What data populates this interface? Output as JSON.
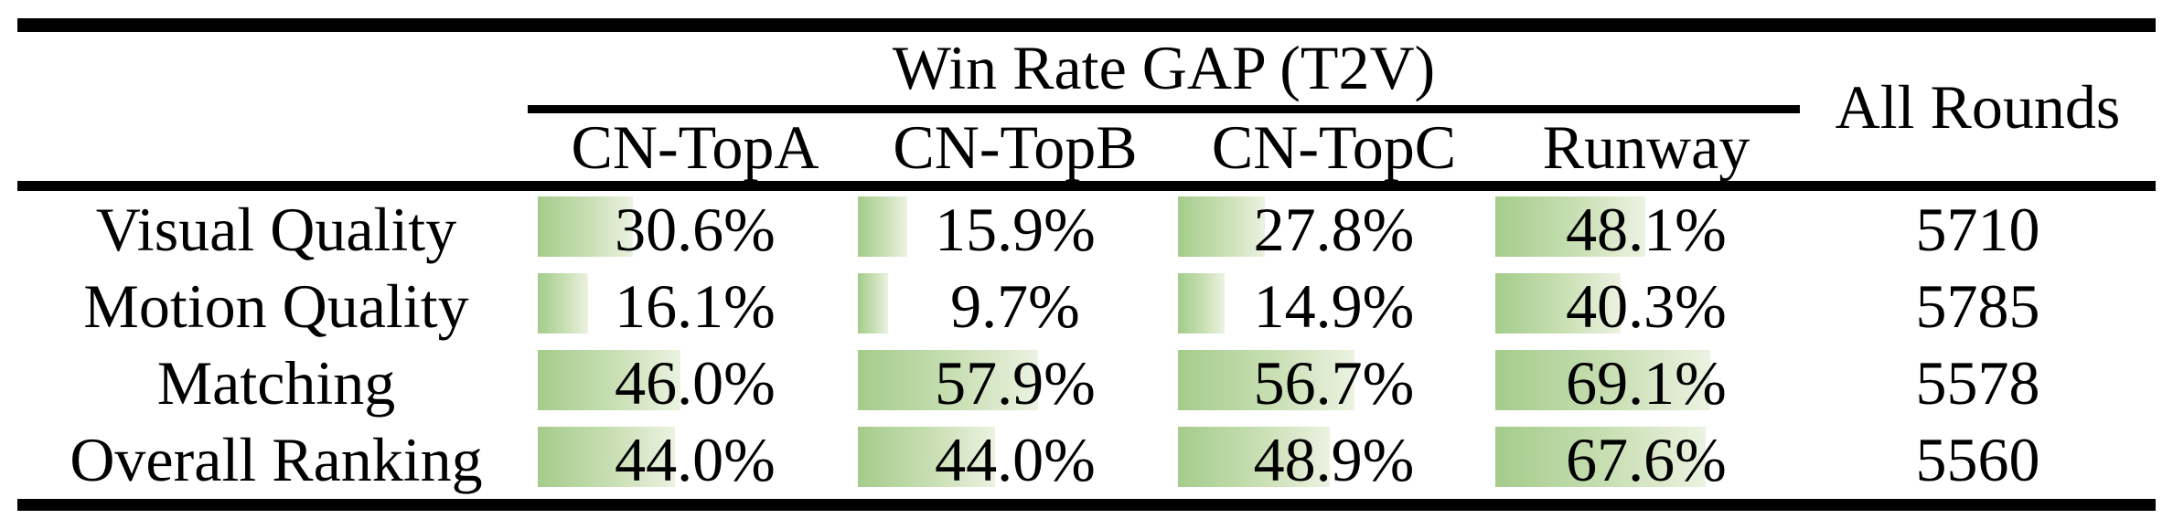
{
  "table": {
    "group_header": "Win Rate GAP (T2V)",
    "all_rounds_header": "All Rounds",
    "model_columns": [
      "CN-TopA",
      "CN-TopB",
      "CN-TopC",
      "Runway"
    ],
    "rows": [
      {
        "label": "Visual Quality",
        "cells": [
          {
            "text": "30.6%",
            "value": 30.6
          },
          {
            "text": "15.9%",
            "value": 15.9
          },
          {
            "text": "27.8%",
            "value": 27.8
          },
          {
            "text": "48.1%",
            "value": 48.1
          }
        ],
        "all_rounds": "5710"
      },
      {
        "label": "Motion Quality",
        "cells": [
          {
            "text": "16.1%",
            "value": 16.1
          },
          {
            "text": "9.7%",
            "value": 9.7
          },
          {
            "text": "14.9%",
            "value": 14.9
          },
          {
            "text": "40.3%",
            "value": 40.3
          }
        ],
        "all_rounds": "5785"
      },
      {
        "label": "Matching",
        "cells": [
          {
            "text": "46.0%",
            "value": 46.0
          },
          {
            "text": "57.9%",
            "value": 57.9
          },
          {
            "text": "56.7%",
            "value": 56.7
          },
          {
            "text": "69.1%",
            "value": 69.1
          }
        ],
        "all_rounds": "5578"
      },
      {
        "label": "Overall Ranking",
        "cells": [
          {
            "text": "44.0%",
            "value": 44.0
          },
          {
            "text": "44.0%",
            "value": 44.0
          },
          {
            "text": "48.9%",
            "value": 48.9
          },
          {
            "text": "67.6%",
            "value": 67.6
          }
        ],
        "all_rounds": "5560"
      }
    ],
    "bar_colors": {
      "start": "#a4cc8b",
      "end": "#ecf2e1"
    }
  },
  "chart_data": {
    "type": "table",
    "title": "Win Rate GAP (T2V)",
    "categories": [
      "Visual Quality",
      "Motion Quality",
      "Matching",
      "Overall Ranking"
    ],
    "series": [
      {
        "name": "CN-TopA",
        "values": [
          30.6,
          16.1,
          46.0,
          44.0
        ]
      },
      {
        "name": "CN-TopB",
        "values": [
          15.9,
          9.7,
          57.9,
          44.0
        ]
      },
      {
        "name": "CN-TopC",
        "values": [
          27.8,
          14.9,
          56.7,
          48.9
        ]
      },
      {
        "name": "Runway",
        "values": [
          48.1,
          40.3,
          69.1,
          67.6
        ]
      }
    ],
    "all_rounds": [
      5710,
      5785,
      5578,
      5560
    ],
    "unit": "%",
    "bar_scale_max_percent": 100,
    "layout": "booktabs table with in-cell green data bars proportional to percent value"
  }
}
